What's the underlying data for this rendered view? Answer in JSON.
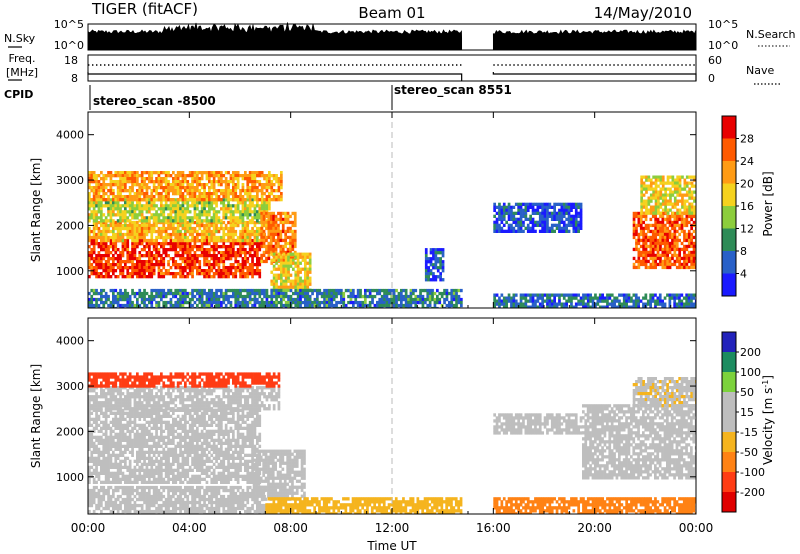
{
  "header": {
    "station": "TIGER (fitACF)",
    "beam": "Beam 01",
    "date": "14/May/2010"
  },
  "status_panel": {
    "nsky_label": "N.Sky",
    "nsky_ticks": [
      "10^5",
      "10^0"
    ],
    "nsearch_label": "N.Search",
    "nsearch_ticks": [
      "10^5",
      "10^0"
    ],
    "freq_label": "Freq.",
    "freq_unit": "[MHz]",
    "freq_ticks": [
      "18",
      "8"
    ],
    "nave_label": "Nave",
    "nave_ticks": [
      "60",
      "0"
    ],
    "cpid_label": "CPID",
    "cpid_entries": [
      {
        "label": "stereo_scan -8500",
        "start_hour": 0
      },
      {
        "label": "stereo_scan 8551",
        "start_hour": 12
      }
    ],
    "data_gap_hours": [
      14.75,
      16.0
    ]
  },
  "colorbars": {
    "power": {
      "label": "Power [dB]",
      "ticks": [
        "28",
        "24",
        "20",
        "16",
        "12",
        "8",
        "4"
      ],
      "colors": [
        "#1a1aff",
        "#2860c8",
        "#2e8b57",
        "#8ccd3c",
        "#f5d21e",
        "#ff9b14",
        "#ff5a00",
        "#e80000"
      ]
    },
    "velocity": {
      "label": "Velocity [m s",
      "label_sup": "-1",
      "label_end": "]",
      "ticks": [
        "200",
        "100",
        "50",
        "15",
        "-15",
        "-50",
        "-100",
        "-200"
      ],
      "colors": [
        "#2222bb",
        "#1c8c60",
        "#7cd23c",
        "#bebebe",
        "#bebebe",
        "#f5b41e",
        "#ff8214",
        "#ff3c14",
        "#e00000"
      ]
    }
  },
  "chart_data": [
    {
      "type": "heatmap",
      "title": "",
      "quantity": "Power [dB]",
      "ylabel": "Slant Range [km]",
      "xlabel": "",
      "x_ticks": [
        "00:00",
        "04:00",
        "08:00",
        "12:00",
        "16:00",
        "20:00",
        "00:00"
      ],
      "y_ticks": [
        "1000",
        "2000",
        "3000",
        "4000"
      ],
      "xlim_hours": [
        0,
        24
      ],
      "ylim_km": [
        180,
        4500
      ],
      "marker_hour": 12,
      "regions": [
        {
          "t0": 0.0,
          "t1": 6.8,
          "r0": 900,
          "r1": 1700,
          "level": 28
        },
        {
          "t0": 0.0,
          "t1": 7.0,
          "r0": 1700,
          "r1": 2100,
          "level": 20
        },
        {
          "t0": 0.0,
          "t1": 7.2,
          "r0": 2100,
          "r1": 2600,
          "level": 16
        },
        {
          "t0": 0.0,
          "t1": 7.6,
          "r0": 2600,
          "r1": 3200,
          "level": 22
        },
        {
          "t0": 6.8,
          "t1": 8.2,
          "r0": 1200,
          "r1": 2300,
          "level": 24
        },
        {
          "t0": 7.2,
          "t1": 8.8,
          "r0": 600,
          "r1": 1400,
          "level": 18
        },
        {
          "t0": 0.0,
          "t1": 14.75,
          "r0": 200,
          "r1": 600,
          "level": 8
        },
        {
          "t0": 13.3,
          "t1": 14.0,
          "r0": 800,
          "r1": 1500,
          "level": 6
        },
        {
          "t0": 16.0,
          "t1": 24.0,
          "r0": 200,
          "r1": 500,
          "level": 7
        },
        {
          "t0": 16.0,
          "t1": 19.5,
          "r0": 1900,
          "r1": 2500,
          "level": 5
        },
        {
          "t0": 21.5,
          "t1": 24.0,
          "r0": 1100,
          "r1": 2300,
          "level": 26
        },
        {
          "t0": 21.8,
          "t1": 24.0,
          "r0": 2300,
          "r1": 3100,
          "level": 18
        }
      ]
    },
    {
      "type": "heatmap",
      "title": "",
      "quantity": "Velocity [m s-1]",
      "ylabel": "Slant Range [km]",
      "xlabel": "Time UT",
      "x_ticks": [
        "00:00",
        "04:00",
        "08:00",
        "12:00",
        "16:00",
        "20:00",
        "00:00"
      ],
      "y_ticks": [
        "1000",
        "2000",
        "3000",
        "4000"
      ],
      "xlim_hours": [
        0,
        24
      ],
      "ylim_km": [
        180,
        4500
      ],
      "marker_hour": 12,
      "regions": [
        {
          "t0": 0.0,
          "t1": 6.8,
          "r0": 900,
          "r1": 2500,
          "level": 0
        },
        {
          "t0": 0.0,
          "t1": 7.5,
          "r0": 2500,
          "r1": 3000,
          "level": -5
        },
        {
          "t0": 0.0,
          "t1": 7.5,
          "r0": 3000,
          "r1": 3300,
          "level": -150
        },
        {
          "t0": 6.5,
          "t1": 8.5,
          "r0": 500,
          "r1": 1600,
          "level": 30
        },
        {
          "t0": 0.0,
          "t1": 7.0,
          "r0": 200,
          "r1": 800,
          "level": 10
        },
        {
          "t0": 7.0,
          "t1": 14.75,
          "r0": 200,
          "r1": 550,
          "level": -40
        },
        {
          "t0": 16.0,
          "t1": 24.0,
          "r0": 200,
          "r1": 550,
          "level": -60
        },
        {
          "t0": 16.0,
          "t1": 19.5,
          "r0": 2000,
          "r1": 2400,
          "level": 0
        },
        {
          "t0": 19.5,
          "t1": 24.0,
          "r0": 1000,
          "r1": 2600,
          "level": 5
        },
        {
          "t0": 21.5,
          "t1": 24.0,
          "r0": 2600,
          "r1": 3200,
          "level": -10
        }
      ]
    }
  ]
}
